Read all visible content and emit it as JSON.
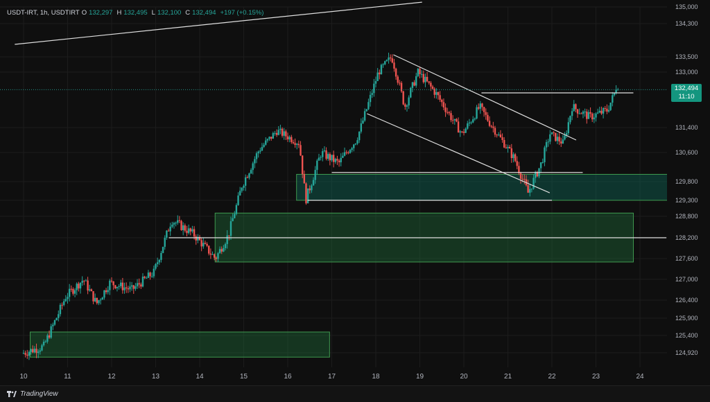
{
  "header": {
    "symbol": "USDT-IRT, 1h, USDTIRT",
    "o_label": "O",
    "o_value": "132,297",
    "h_label": "H",
    "h_value": "132,495",
    "l_label": "L",
    "l_value": "132,100",
    "c_label": "C",
    "c_value": "132,494",
    "change": "+197 (+0.15%)"
  },
  "price_tag": {
    "price": "132,494",
    "countdown": "11:10"
  },
  "footer": {
    "brand": "TradingView",
    "logo_icon": "tradingview-logo-icon"
  },
  "colors": {
    "up": "#26a69a",
    "down": "#ef5350",
    "zone": "#1e6b3a",
    "zone_teal": "#0f6b5a",
    "line": "#e0e0e0",
    "tag": "#14967f"
  },
  "chart_data": {
    "type": "candlestick",
    "title": "",
    "x_ticks": [
      "10",
      "11",
      "12",
      "13",
      "14",
      "15",
      "16",
      "17",
      "18",
      "19",
      "20",
      "21",
      "22",
      "23",
      "24"
    ],
    "y_ticks": [
      135000,
      134300,
      133500,
      133000,
      131400,
      130600,
      129800,
      129300,
      128800,
      128200,
      127600,
      127000,
      126400,
      125900,
      125400,
      124920
    ],
    "y_tick_labels": [
      "135,000",
      "134,300",
      "133,500",
      "133,000",
      "131,400",
      "130,600",
      "129,800",
      "129,300",
      "128,800",
      "128,200",
      "127,600",
      "127,000",
      "126,400",
      "125,900",
      "125,400",
      "124,920"
    ],
    "ylim": [
      124600,
      135200
    ],
    "current_price": 132494,
    "path_anchors": [
      [
        10.0,
        124900
      ],
      [
        10.5,
        125100
      ],
      [
        11.0,
        126500
      ],
      [
        11.4,
        127000
      ],
      [
        11.7,
        126300
      ],
      [
        12.0,
        126900
      ],
      [
        12.5,
        126700
      ],
      [
        13.0,
        127200
      ],
      [
        13.4,
        128700
      ],
      [
        13.9,
        128300
      ],
      [
        14.4,
        127600
      ],
      [
        14.7,
        128300
      ],
      [
        15.0,
        129700
      ],
      [
        15.4,
        130700
      ],
      [
        15.8,
        131300
      ],
      [
        16.3,
        130900
      ],
      [
        16.45,
        129300
      ],
      [
        16.8,
        130600
      ],
      [
        17.2,
        130300
      ],
      [
        17.6,
        131000
      ],
      [
        17.9,
        132200
      ],
      [
        18.1,
        133000
      ],
      [
        18.4,
        133500
      ],
      [
        18.7,
        132000
      ],
      [
        19.0,
        133000
      ],
      [
        19.4,
        132400
      ],
      [
        19.7,
        131800
      ],
      [
        20.0,
        131200
      ],
      [
        20.4,
        132000
      ],
      [
        20.8,
        131200
      ],
      [
        21.2,
        130400
      ],
      [
        21.5,
        129500
      ],
      [
        21.8,
        130300
      ],
      [
        22.0,
        131200
      ],
      [
        22.3,
        130900
      ],
      [
        22.5,
        132000
      ],
      [
        22.9,
        131700
      ],
      [
        23.3,
        131900
      ],
      [
        23.5,
        132494
      ]
    ],
    "zones": [
      {
        "x0": 10.15,
        "x1": 16.95,
        "y0": 124800,
        "y1": 125500
      },
      {
        "x0": 14.35,
        "x1": 23.85,
        "y0": 127500,
        "y1": 128900
      },
      {
        "x0": 16.2,
        "x1": 24.65,
        "y0": 129300,
        "y1": 130000
      }
    ],
    "lines": [
      {
        "x0": 9.8,
        "y0": 133800,
        "x1": 19.05,
        "y1": 135200
      },
      {
        "x0": 18.4,
        "y0": 133550,
        "x1": 22.55,
        "y1": 131000
      },
      {
        "x0": 17.8,
        "y0": 131800,
        "x1": 21.95,
        "y1": 129500
      },
      {
        "x0": 20.4,
        "y0": 132400,
        "x1": 23.85,
        "y1": 132400
      },
      {
        "x0": 17.0,
        "y0": 130050,
        "x1": 22.7,
        "y1": 130050
      },
      {
        "x0": 16.45,
        "y0": 129300,
        "x1": 22.0,
        "y1": 129300
      },
      {
        "x0": 13.3,
        "y0": 128200,
        "x1": 24.6,
        "y1": 128200
      }
    ]
  }
}
